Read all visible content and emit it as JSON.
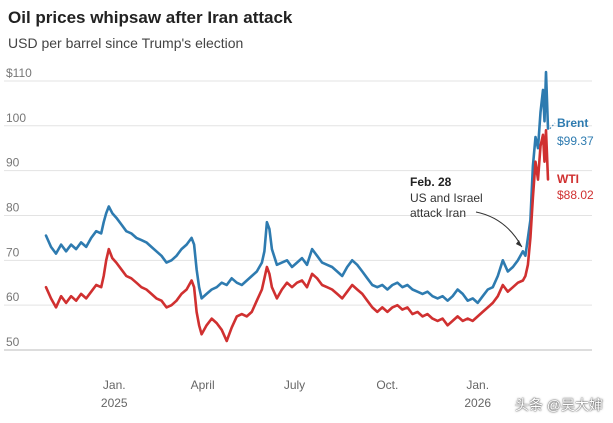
{
  "header": {
    "title": "Oil prices whipsaw after Iran attack",
    "subtitle": "USD per barrel since Trump's election"
  },
  "watermark": "头条 @吴大婶",
  "chart_data": {
    "type": "line",
    "title": "Oil prices whipsaw after Iran attack",
    "subtitle": "USD per barrel since Trump's election",
    "ylim": [
      50,
      114
    ],
    "y_ticks": [
      {
        "value": 110,
        "label": "$110"
      },
      {
        "value": 100,
        "label": "100"
      },
      {
        "value": 90,
        "label": "90"
      },
      {
        "value": 80,
        "label": "80"
      },
      {
        "value": 70,
        "label": "70"
      },
      {
        "value": 60,
        "label": "60"
      },
      {
        "value": 50,
        "label": "50"
      }
    ],
    "x_ticks": [
      {
        "t": 0.136,
        "label": "Jan.",
        "year": "2025"
      },
      {
        "t": 0.312,
        "label": "April",
        "year": ""
      },
      {
        "t": 0.495,
        "label": "July",
        "year": ""
      },
      {
        "t": 0.68,
        "label": "Oct.",
        "year": ""
      },
      {
        "t": 0.86,
        "label": "Jan.",
        "year": "2026"
      }
    ],
    "grid": true,
    "series": [
      {
        "name": "Brent",
        "color": "#2e7bb0",
        "last_value_label": "$99.37",
        "points": [
          [
            0.0,
            75.5
          ],
          [
            0.01,
            73.0
          ],
          [
            0.02,
            71.5
          ],
          [
            0.03,
            73.5
          ],
          [
            0.04,
            72.0
          ],
          [
            0.05,
            73.5
          ],
          [
            0.06,
            72.5
          ],
          [
            0.07,
            74.0
          ],
          [
            0.08,
            73.0
          ],
          [
            0.09,
            75.0
          ],
          [
            0.1,
            76.5
          ],
          [
            0.11,
            76.0
          ],
          [
            0.115,
            78.5
          ],
          [
            0.12,
            80.5
          ],
          [
            0.125,
            82.0
          ],
          [
            0.132,
            80.5
          ],
          [
            0.14,
            79.5
          ],
          [
            0.15,
            78.0
          ],
          [
            0.16,
            76.5
          ],
          [
            0.17,
            76.0
          ],
          [
            0.18,
            75.0
          ],
          [
            0.19,
            74.5
          ],
          [
            0.2,
            74.0
          ],
          [
            0.21,
            73.0
          ],
          [
            0.22,
            72.0
          ],
          [
            0.23,
            71.0
          ],
          [
            0.24,
            69.5
          ],
          [
            0.25,
            70.0
          ],
          [
            0.26,
            71.0
          ],
          [
            0.27,
            72.5
          ],
          [
            0.28,
            73.5
          ],
          [
            0.29,
            75.0
          ],
          [
            0.295,
            73.5
          ],
          [
            0.3,
            68.0
          ],
          [
            0.305,
            64.0
          ],
          [
            0.31,
            61.5
          ],
          [
            0.32,
            62.5
          ],
          [
            0.33,
            63.5
          ],
          [
            0.34,
            64.0
          ],
          [
            0.35,
            65.0
          ],
          [
            0.36,
            64.5
          ],
          [
            0.37,
            66.0
          ],
          [
            0.38,
            65.0
          ],
          [
            0.39,
            64.5
          ],
          [
            0.4,
            65.5
          ],
          [
            0.41,
            66.5
          ],
          [
            0.42,
            67.5
          ],
          [
            0.43,
            69.5
          ],
          [
            0.435,
            72.0
          ],
          [
            0.44,
            78.5
          ],
          [
            0.445,
            77.0
          ],
          [
            0.45,
            72.5
          ],
          [
            0.46,
            69.0
          ],
          [
            0.47,
            69.5
          ],
          [
            0.48,
            70.0
          ],
          [
            0.49,
            68.5
          ],
          [
            0.5,
            69.5
          ],
          [
            0.51,
            70.5
          ],
          [
            0.52,
            69.0
          ],
          [
            0.53,
            72.5
          ],
          [
            0.54,
            71.0
          ],
          [
            0.55,
            69.5
          ],
          [
            0.56,
            69.0
          ],
          [
            0.57,
            68.5
          ],
          [
            0.58,
            67.5
          ],
          [
            0.59,
            66.5
          ],
          [
            0.6,
            68.5
          ],
          [
            0.61,
            70.0
          ],
          [
            0.62,
            69.0
          ],
          [
            0.63,
            67.5
          ],
          [
            0.64,
            66.0
          ],
          [
            0.65,
            64.5
          ],
          [
            0.66,
            64.0
          ],
          [
            0.67,
            64.5
          ],
          [
            0.68,
            63.5
          ],
          [
            0.69,
            64.5
          ],
          [
            0.7,
            65.0
          ],
          [
            0.71,
            64.0
          ],
          [
            0.72,
            64.5
          ],
          [
            0.73,
            63.5
          ],
          [
            0.74,
            63.0
          ],
          [
            0.75,
            62.5
          ],
          [
            0.76,
            63.0
          ],
          [
            0.77,
            62.0
          ],
          [
            0.78,
            61.5
          ],
          [
            0.79,
            62.0
          ],
          [
            0.8,
            61.0
          ],
          [
            0.81,
            62.0
          ],
          [
            0.82,
            63.5
          ],
          [
            0.83,
            62.5
          ],
          [
            0.84,
            61.0
          ],
          [
            0.85,
            61.5
          ],
          [
            0.86,
            60.5
          ],
          [
            0.87,
            62.0
          ],
          [
            0.88,
            63.5
          ],
          [
            0.89,
            64.0
          ],
          [
            0.9,
            66.5
          ],
          [
            0.91,
            70.0
          ],
          [
            0.92,
            67.5
          ],
          [
            0.93,
            68.5
          ],
          [
            0.94,
            70.0
          ],
          [
            0.95,
            72.0
          ],
          [
            0.955,
            71.0
          ],
          [
            0.96,
            75.0
          ],
          [
            0.965,
            79.0
          ],
          [
            0.97,
            91.0
          ],
          [
            0.975,
            97.5
          ],
          [
            0.98,
            95.0
          ],
          [
            0.985,
            103.0
          ],
          [
            0.99,
            108.0
          ],
          [
            0.993,
            101.0
          ],
          [
            0.996,
            112.0
          ],
          [
            1.0,
            99.37
          ]
        ]
      },
      {
        "name": "WTI",
        "color": "#d03030",
        "last_value_label": "$88.02",
        "points": [
          [
            0.0,
            64.0
          ],
          [
            0.01,
            61.5
          ],
          [
            0.02,
            59.5
          ],
          [
            0.03,
            62.0
          ],
          [
            0.04,
            60.5
          ],
          [
            0.05,
            62.0
          ],
          [
            0.06,
            61.0
          ],
          [
            0.07,
            62.5
          ],
          [
            0.08,
            61.5
          ],
          [
            0.09,
            63.0
          ],
          [
            0.1,
            64.5
          ],
          [
            0.11,
            64.0
          ],
          [
            0.115,
            66.5
          ],
          [
            0.12,
            70.0
          ],
          [
            0.125,
            72.5
          ],
          [
            0.132,
            70.5
          ],
          [
            0.14,
            69.5
          ],
          [
            0.15,
            68.0
          ],
          [
            0.16,
            66.5
          ],
          [
            0.17,
            66.0
          ],
          [
            0.18,
            65.0
          ],
          [
            0.19,
            64.0
          ],
          [
            0.2,
            63.5
          ],
          [
            0.21,
            62.5
          ],
          [
            0.22,
            61.5
          ],
          [
            0.23,
            61.0
          ],
          [
            0.24,
            59.5
          ],
          [
            0.25,
            60.0
          ],
          [
            0.26,
            61.0
          ],
          [
            0.27,
            62.5
          ],
          [
            0.28,
            63.5
          ],
          [
            0.29,
            65.5
          ],
          [
            0.295,
            64.0
          ],
          [
            0.3,
            58.5
          ],
          [
            0.305,
            55.5
          ],
          [
            0.31,
            53.5
          ],
          [
            0.32,
            55.5
          ],
          [
            0.33,
            57.0
          ],
          [
            0.34,
            56.0
          ],
          [
            0.35,
            54.5
          ],
          [
            0.36,
            52.0
          ],
          [
            0.37,
            55.0
          ],
          [
            0.38,
            57.5
          ],
          [
            0.39,
            58.0
          ],
          [
            0.4,
            57.5
          ],
          [
            0.41,
            58.5
          ],
          [
            0.42,
            61.0
          ],
          [
            0.43,
            63.5
          ],
          [
            0.435,
            66.0
          ],
          [
            0.44,
            68.5
          ],
          [
            0.445,
            67.0
          ],
          [
            0.45,
            64.0
          ],
          [
            0.46,
            61.5
          ],
          [
            0.47,
            63.5
          ],
          [
            0.48,
            65.0
          ],
          [
            0.49,
            64.0
          ],
          [
            0.5,
            65.0
          ],
          [
            0.51,
            65.5
          ],
          [
            0.52,
            64.0
          ],
          [
            0.53,
            67.0
          ],
          [
            0.54,
            66.0
          ],
          [
            0.55,
            64.5
          ],
          [
            0.56,
            64.0
          ],
          [
            0.57,
            63.5
          ],
          [
            0.58,
            62.5
          ],
          [
            0.59,
            61.5
          ],
          [
            0.6,
            63.0
          ],
          [
            0.61,
            64.5
          ],
          [
            0.62,
            63.5
          ],
          [
            0.63,
            62.5
          ],
          [
            0.64,
            61.0
          ],
          [
            0.65,
            59.5
          ],
          [
            0.66,
            58.5
          ],
          [
            0.67,
            59.5
          ],
          [
            0.68,
            58.5
          ],
          [
            0.69,
            59.5
          ],
          [
            0.7,
            60.0
          ],
          [
            0.71,
            59.0
          ],
          [
            0.72,
            59.5
          ],
          [
            0.73,
            58.0
          ],
          [
            0.74,
            58.5
          ],
          [
            0.75,
            57.5
          ],
          [
            0.76,
            58.0
          ],
          [
            0.77,
            57.0
          ],
          [
            0.78,
            56.5
          ],
          [
            0.79,
            57.0
          ],
          [
            0.8,
            55.5
          ],
          [
            0.81,
            56.5
          ],
          [
            0.82,
            57.5
          ],
          [
            0.83,
            56.5
          ],
          [
            0.84,
            57.0
          ],
          [
            0.85,
            56.5
          ],
          [
            0.86,
            57.5
          ],
          [
            0.87,
            58.5
          ],
          [
            0.88,
            59.5
          ],
          [
            0.89,
            60.5
          ],
          [
            0.9,
            62.0
          ],
          [
            0.91,
            64.5
          ],
          [
            0.92,
            63.0
          ],
          [
            0.93,
            64.0
          ],
          [
            0.94,
            65.0
          ],
          [
            0.95,
            65.5
          ],
          [
            0.955,
            66.5
          ],
          [
            0.96,
            69.0
          ],
          [
            0.965,
            75.0
          ],
          [
            0.97,
            84.0
          ],
          [
            0.975,
            92.0
          ],
          [
            0.98,
            88.0
          ],
          [
            0.985,
            95.5
          ],
          [
            0.99,
            98.0
          ],
          [
            0.993,
            92.0
          ],
          [
            0.996,
            99.0
          ],
          [
            1.0,
            88.02
          ]
        ]
      }
    ],
    "annotation": {
      "title": "Feb. 28",
      "lines": [
        "US and Israel",
        "attack Iran"
      ],
      "t": 0.952
    }
  }
}
